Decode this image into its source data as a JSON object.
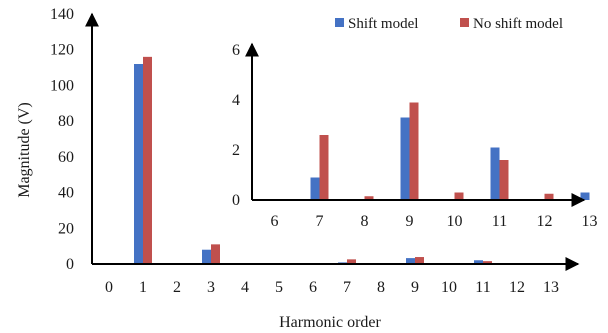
{
  "chart_data": [
    {
      "type": "bar",
      "role": "main",
      "x": [
        0,
        1,
        2,
        3,
        4,
        5,
        6,
        7,
        8,
        9,
        10,
        11,
        12,
        13
      ],
      "series": [
        {
          "name": "Shift model",
          "color": "#4472c4",
          "values": [
            0,
            112,
            0,
            8,
            0,
            0,
            0,
            0.9,
            0,
            3.3,
            0,
            2.1,
            0,
            0.3
          ]
        },
        {
          "name": "No shift model",
          "color": "#c0504d",
          "values": [
            0,
            116,
            0,
            11,
            0,
            0,
            0,
            2.6,
            0.15,
            3.9,
            0.3,
            1.6,
            0.25,
            0
          ]
        }
      ],
      "xlabel": "Harmonic order",
      "ylabel": "Magnitude (V)",
      "ylim": [
        0,
        140
      ],
      "yticks": [
        0,
        20,
        40,
        60,
        80,
        100,
        120,
        140
      ],
      "xticks": [
        0,
        1,
        2,
        3,
        4,
        5,
        6,
        7,
        8,
        9,
        10,
        11,
        12,
        13
      ],
      "legend": "top-right",
      "grid": false
    },
    {
      "type": "bar",
      "role": "inset",
      "x": [
        6,
        7,
        8,
        9,
        10,
        11,
        12,
        13
      ],
      "series": [
        {
          "name": "Shift model",
          "color": "#4472c4",
          "values": [
            0,
            0.9,
            0,
            3.3,
            0,
            2.1,
            0,
            0.3
          ]
        },
        {
          "name": "No shift model",
          "color": "#c0504d",
          "values": [
            0,
            2.6,
            0.15,
            3.9,
            0.3,
            1.6,
            0.25,
            0
          ]
        }
      ],
      "ylim": [
        0,
        6
      ],
      "yticks": [
        0,
        2,
        4,
        6
      ],
      "xticks": [
        6,
        7,
        8,
        9,
        10,
        11,
        12,
        13
      ],
      "grid": false
    }
  ]
}
